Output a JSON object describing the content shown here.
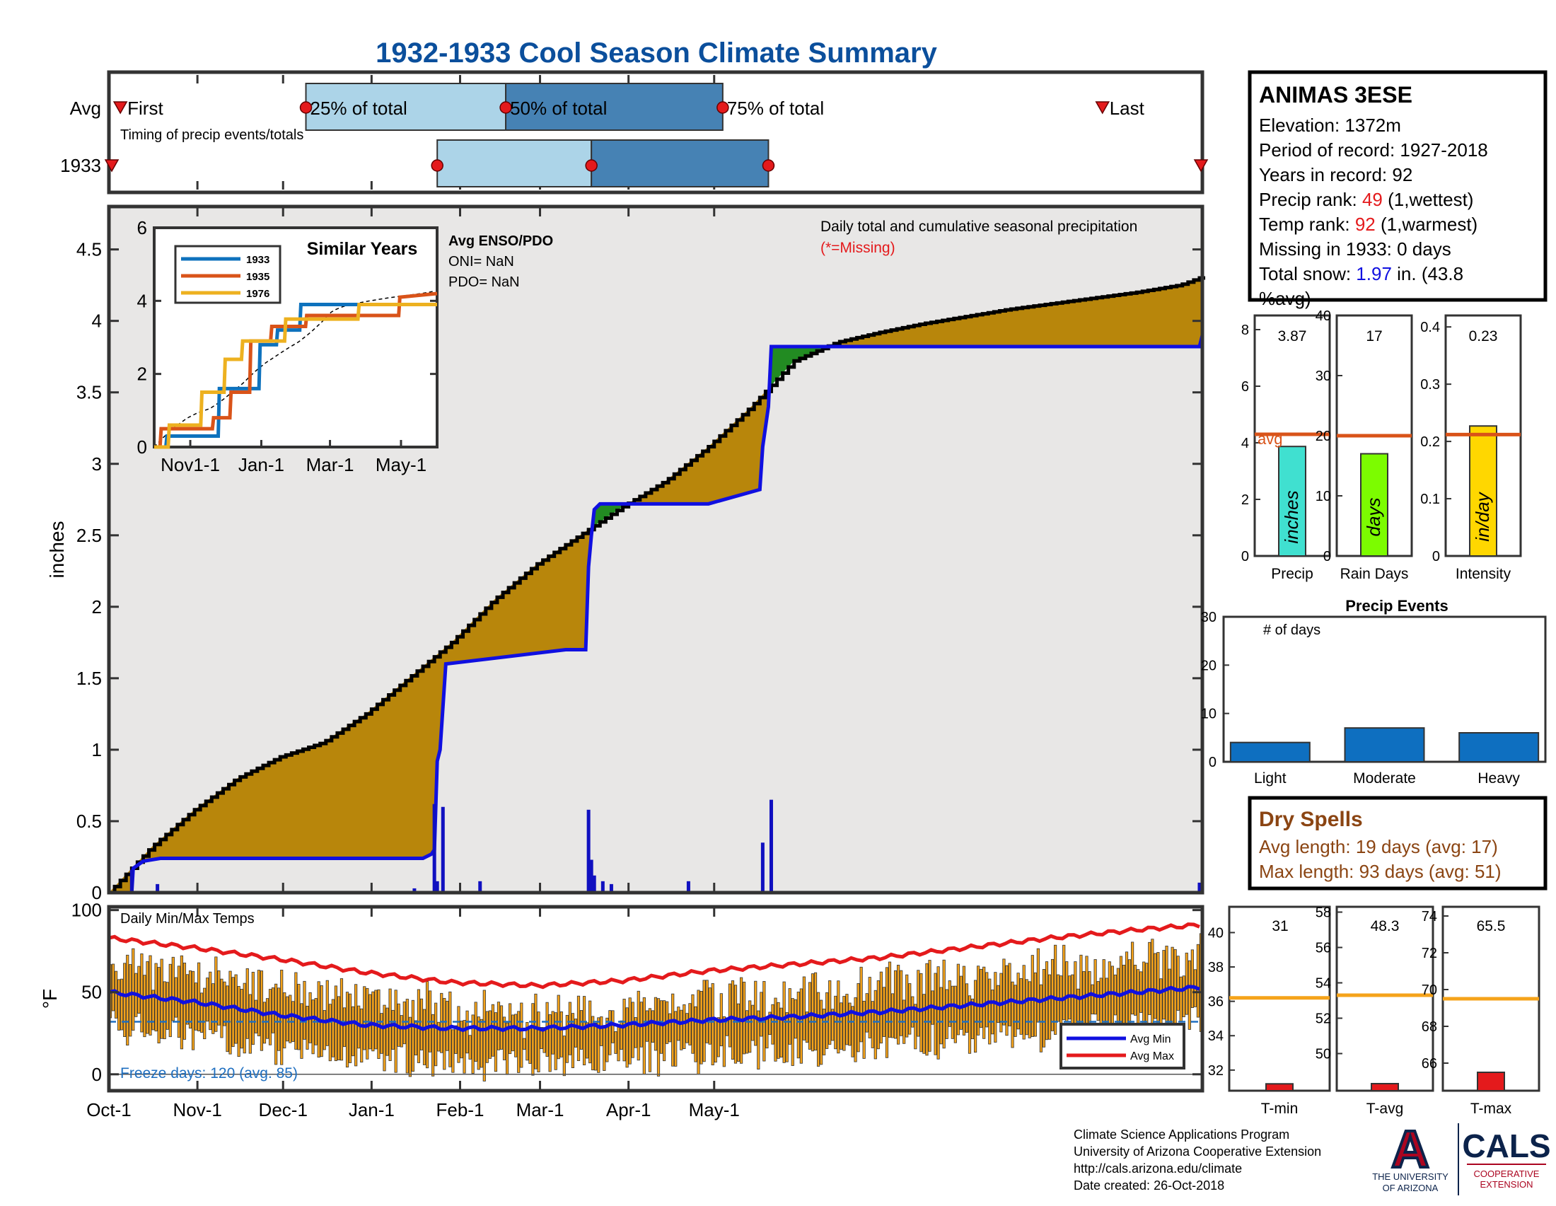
{
  "title": "1932-1933 Cool Season Climate Summary",
  "colors": {
    "title_blue": "#0b4f9c",
    "avg_fill": "#b8860b",
    "year_line": "#1010e0",
    "surplus": "#228b22",
    "bg": "#e8e7e6",
    "tmax": "#e41a1c",
    "tmin": "#1010e0",
    "bars": "#f5a31a"
  },
  "timing": {
    "rows": [
      "Avg",
      "1933"
    ],
    "caption": "Timing of precip events/totals",
    "avg_labels": [
      "First",
      "25% of total",
      "50% of total",
      "75% of total",
      "Last"
    ],
    "avg_markers_day": [
      4,
      69,
      139,
      215,
      348
    ],
    "year_markers_day": [
      1,
      115,
      169,
      231,
      382
    ],
    "box_color_light": "#acd4e8",
    "box_color_dark": "#4682b4"
  },
  "chart_data": [
    {
      "type": "area",
      "title": "Daily total and cumulative seasonal precipitation",
      "subtitle": "(*=Missing)",
      "ylabel": "inches",
      "ylim": [
        0,
        4.8
      ],
      "yticks": [
        "0",
        "0.5",
        "1",
        "1.5",
        "2",
        "2.5",
        "3",
        "3.5",
        "4",
        "4.5"
      ],
      "x_ticks": [
        "Oct-1",
        "Nov-1",
        "Dec-1",
        "Jan-1",
        "Feb-1",
        "Mar-1",
        "Apr-1",
        "May-1"
      ],
      "avg_cumulative": {
        "x_day": [
          0,
          15,
          30,
          45,
          60,
          75,
          90,
          105,
          120,
          135,
          150,
          165,
          180,
          195,
          210,
          225,
          240,
          255,
          270,
          285,
          300,
          315,
          330,
          345,
          360,
          375,
          382
        ],
        "y": [
          0,
          0.32,
          0.58,
          0.8,
          0.95,
          1.05,
          1.25,
          1.5,
          1.75,
          2.05,
          2.3,
          2.5,
          2.7,
          2.88,
          3.12,
          3.4,
          3.72,
          3.85,
          3.92,
          3.98,
          4.03,
          4.08,
          4.12,
          4.16,
          4.2,
          4.25,
          4.3
        ]
      },
      "year_cumulative": {
        "x_day": [
          0,
          8,
          8.5,
          12,
          18,
          65,
          110,
          113,
          114,
          115,
          116,
          118,
          160,
          167,
          168,
          169,
          170,
          172,
          175,
          210,
          228,
          229,
          231,
          232,
          382,
          383
        ],
        "y": [
          0,
          0,
          0.17,
          0.22,
          0.24,
          0.24,
          0.24,
          0.27,
          0.3,
          0.92,
          1.0,
          1.6,
          1.7,
          1.7,
          2.28,
          2.5,
          2.68,
          2.72,
          2.72,
          2.72,
          2.82,
          3.12,
          3.4,
          3.82,
          3.82,
          3.9
        ]
      },
      "daily_precip": {
        "x_day": [
          8,
          17,
          107,
          114,
          115,
          117,
          130,
          168,
          169,
          170,
          173,
          176,
          203,
          229,
          232,
          382
        ],
        "y": [
          0.16,
          0.06,
          0.03,
          0.62,
          0.08,
          0.6,
          0.08,
          0.58,
          0.23,
          0.12,
          0.08,
          0.06,
          0.08,
          0.35,
          0.65,
          0.07
        ]
      },
      "inset": {
        "title": "Similar Years",
        "legend": [
          "1933",
          "1935",
          "1976"
        ],
        "colors": [
          "#0e72bd",
          "#d95319",
          "#edb120"
        ],
        "ylim": [
          0,
          6
        ],
        "yticks": [
          "0",
          "2",
          "4",
          "6"
        ],
        "x_ticks": [
          "Nov1-1",
          "Jan-1",
          "Mar-1",
          "May-1"
        ]
      },
      "enso": {
        "heading": "Avg ENSO/PDO",
        "oni": "ONI= NaN",
        "pdo": "PDO= NaN"
      }
    },
    {
      "type": "bar",
      "title": "Daily Min/Max Temps",
      "ylabel": "°F",
      "ylim": [
        -10,
        102
      ],
      "yticks": [
        "0",
        "50",
        "100"
      ],
      "freeze_line": 32,
      "legend": [
        "Avg Min",
        "Avg Max"
      ],
      "avg_max": {
        "x_day": [
          0,
          30,
          60,
          90,
          120,
          150,
          180,
          210,
          240,
          270,
          300,
          330,
          360,
          382
        ],
        "y": [
          83,
          77,
          70,
          62,
          56,
          54,
          57,
          63,
          67,
          71,
          77,
          83,
          88,
          91
        ]
      },
      "avg_min": {
        "x_day": [
          0,
          30,
          60,
          90,
          120,
          150,
          180,
          210,
          240,
          270,
          300,
          330,
          360,
          382
        ],
        "y": [
          50,
          44,
          36,
          30,
          28,
          28,
          30,
          33,
          35,
          38,
          42,
          46,
          50,
          53
        ]
      }
    },
    {
      "type": "bar",
      "categories": [
        "Precip"
      ],
      "values": [
        3.87
      ],
      "avg": 4.3,
      "ylim": [
        0,
        8.5
      ],
      "yticks": [
        "0",
        "2",
        "4",
        "6",
        "8"
      ],
      "label_value": "3.87",
      "bar_text": "inches",
      "avg_text": "avg"
    },
    {
      "type": "bar",
      "categories": [
        "Rain Days"
      ],
      "values": [
        17
      ],
      "avg": 20,
      "ylim": [
        0,
        40
      ],
      "yticks": [
        "0",
        "10",
        "20",
        "30",
        "40"
      ],
      "label_value": "17",
      "bar_text": "days"
    },
    {
      "type": "bar",
      "categories": [
        "Intensity"
      ],
      "values": [
        0.227
      ],
      "avg": 0.212,
      "ylim": [
        0,
        0.42
      ],
      "yticks": [
        "0",
        "0.1",
        "0.2",
        "0.3",
        "0.4"
      ],
      "label_value": "0.23",
      "bar_text": "in/day"
    },
    {
      "type": "bar",
      "title": "Precip Events",
      "ylabel_inside": "# of days",
      "categories": [
        "Light",
        "Moderate",
        "Heavy"
      ],
      "values": [
        4,
        7,
        6
      ],
      "ylim": [
        0,
        30
      ],
      "yticks": [
        "0",
        "10",
        "20",
        "30"
      ]
    },
    {
      "type": "bar",
      "categories": [
        "T-min"
      ],
      "values": [
        31.2
      ],
      "avg": 36.2,
      "ylim": [
        30.8,
        41.5
      ],
      "yticks": [
        "32",
        "34",
        "36",
        "38",
        "40"
      ],
      "label_value": "31"
    },
    {
      "type": "bar",
      "categories": [
        "T-avg"
      ],
      "values": [
        48.3
      ],
      "avg": 53.3,
      "ylim": [
        47.9,
        58.3
      ],
      "yticks": [
        "50",
        "52",
        "54",
        "56",
        "58"
      ],
      "label_value": "48.3"
    },
    {
      "type": "bar",
      "categories": [
        "T-max"
      ],
      "values": [
        65.5
      ],
      "avg": 69.5,
      "ylim": [
        64.5,
        74.5
      ],
      "yticks": [
        "66",
        "68",
        "70",
        "72",
        "74"
      ],
      "label_value": "65.5"
    }
  ],
  "station": {
    "name": "ANIMAS 3ESE",
    "elevation": "Elevation: 1372m",
    "period": "Period of record: 1927-2018",
    "years": "Years in record: 92",
    "precip_rank_label": "Precip rank: ",
    "precip_rank_value": "49",
    "precip_rank_note": " (1,wettest)",
    "temp_rank_label": "Temp rank: ",
    "temp_rank_value": "92",
    "temp_rank_note": " (1,warmest)",
    "missing": "Missing in 1933: 0 days",
    "snow_label": "Total snow: ",
    "snow_value": "1.97",
    "snow_note": " in. (43.8",
    "snow_note2": "%avg)"
  },
  "dry_spells": {
    "title": "Dry Spells",
    "avg": "Avg length: 19 days (avg: 17)",
    "max": "Max length: 93 days (avg: 51)"
  },
  "freeze_days": "Freeze days: 120 (avg. 85)",
  "footer": {
    "line1": "Climate Science Applications Program",
    "line2": "University of Arizona Cooperative Extension",
    "line3": "http://cals.arizona.edu/climate",
    "line4": " Date created: 26-Oct-2018"
  },
  "logo": {
    "ua_letter": "A",
    "ua_line1": "THE UNIVERSITY",
    "ua_line2": "OF ARIZONA",
    "cals": "CALS",
    "cals_line1": "COOPERATIVE",
    "cals_line2": "EXTENSION"
  }
}
